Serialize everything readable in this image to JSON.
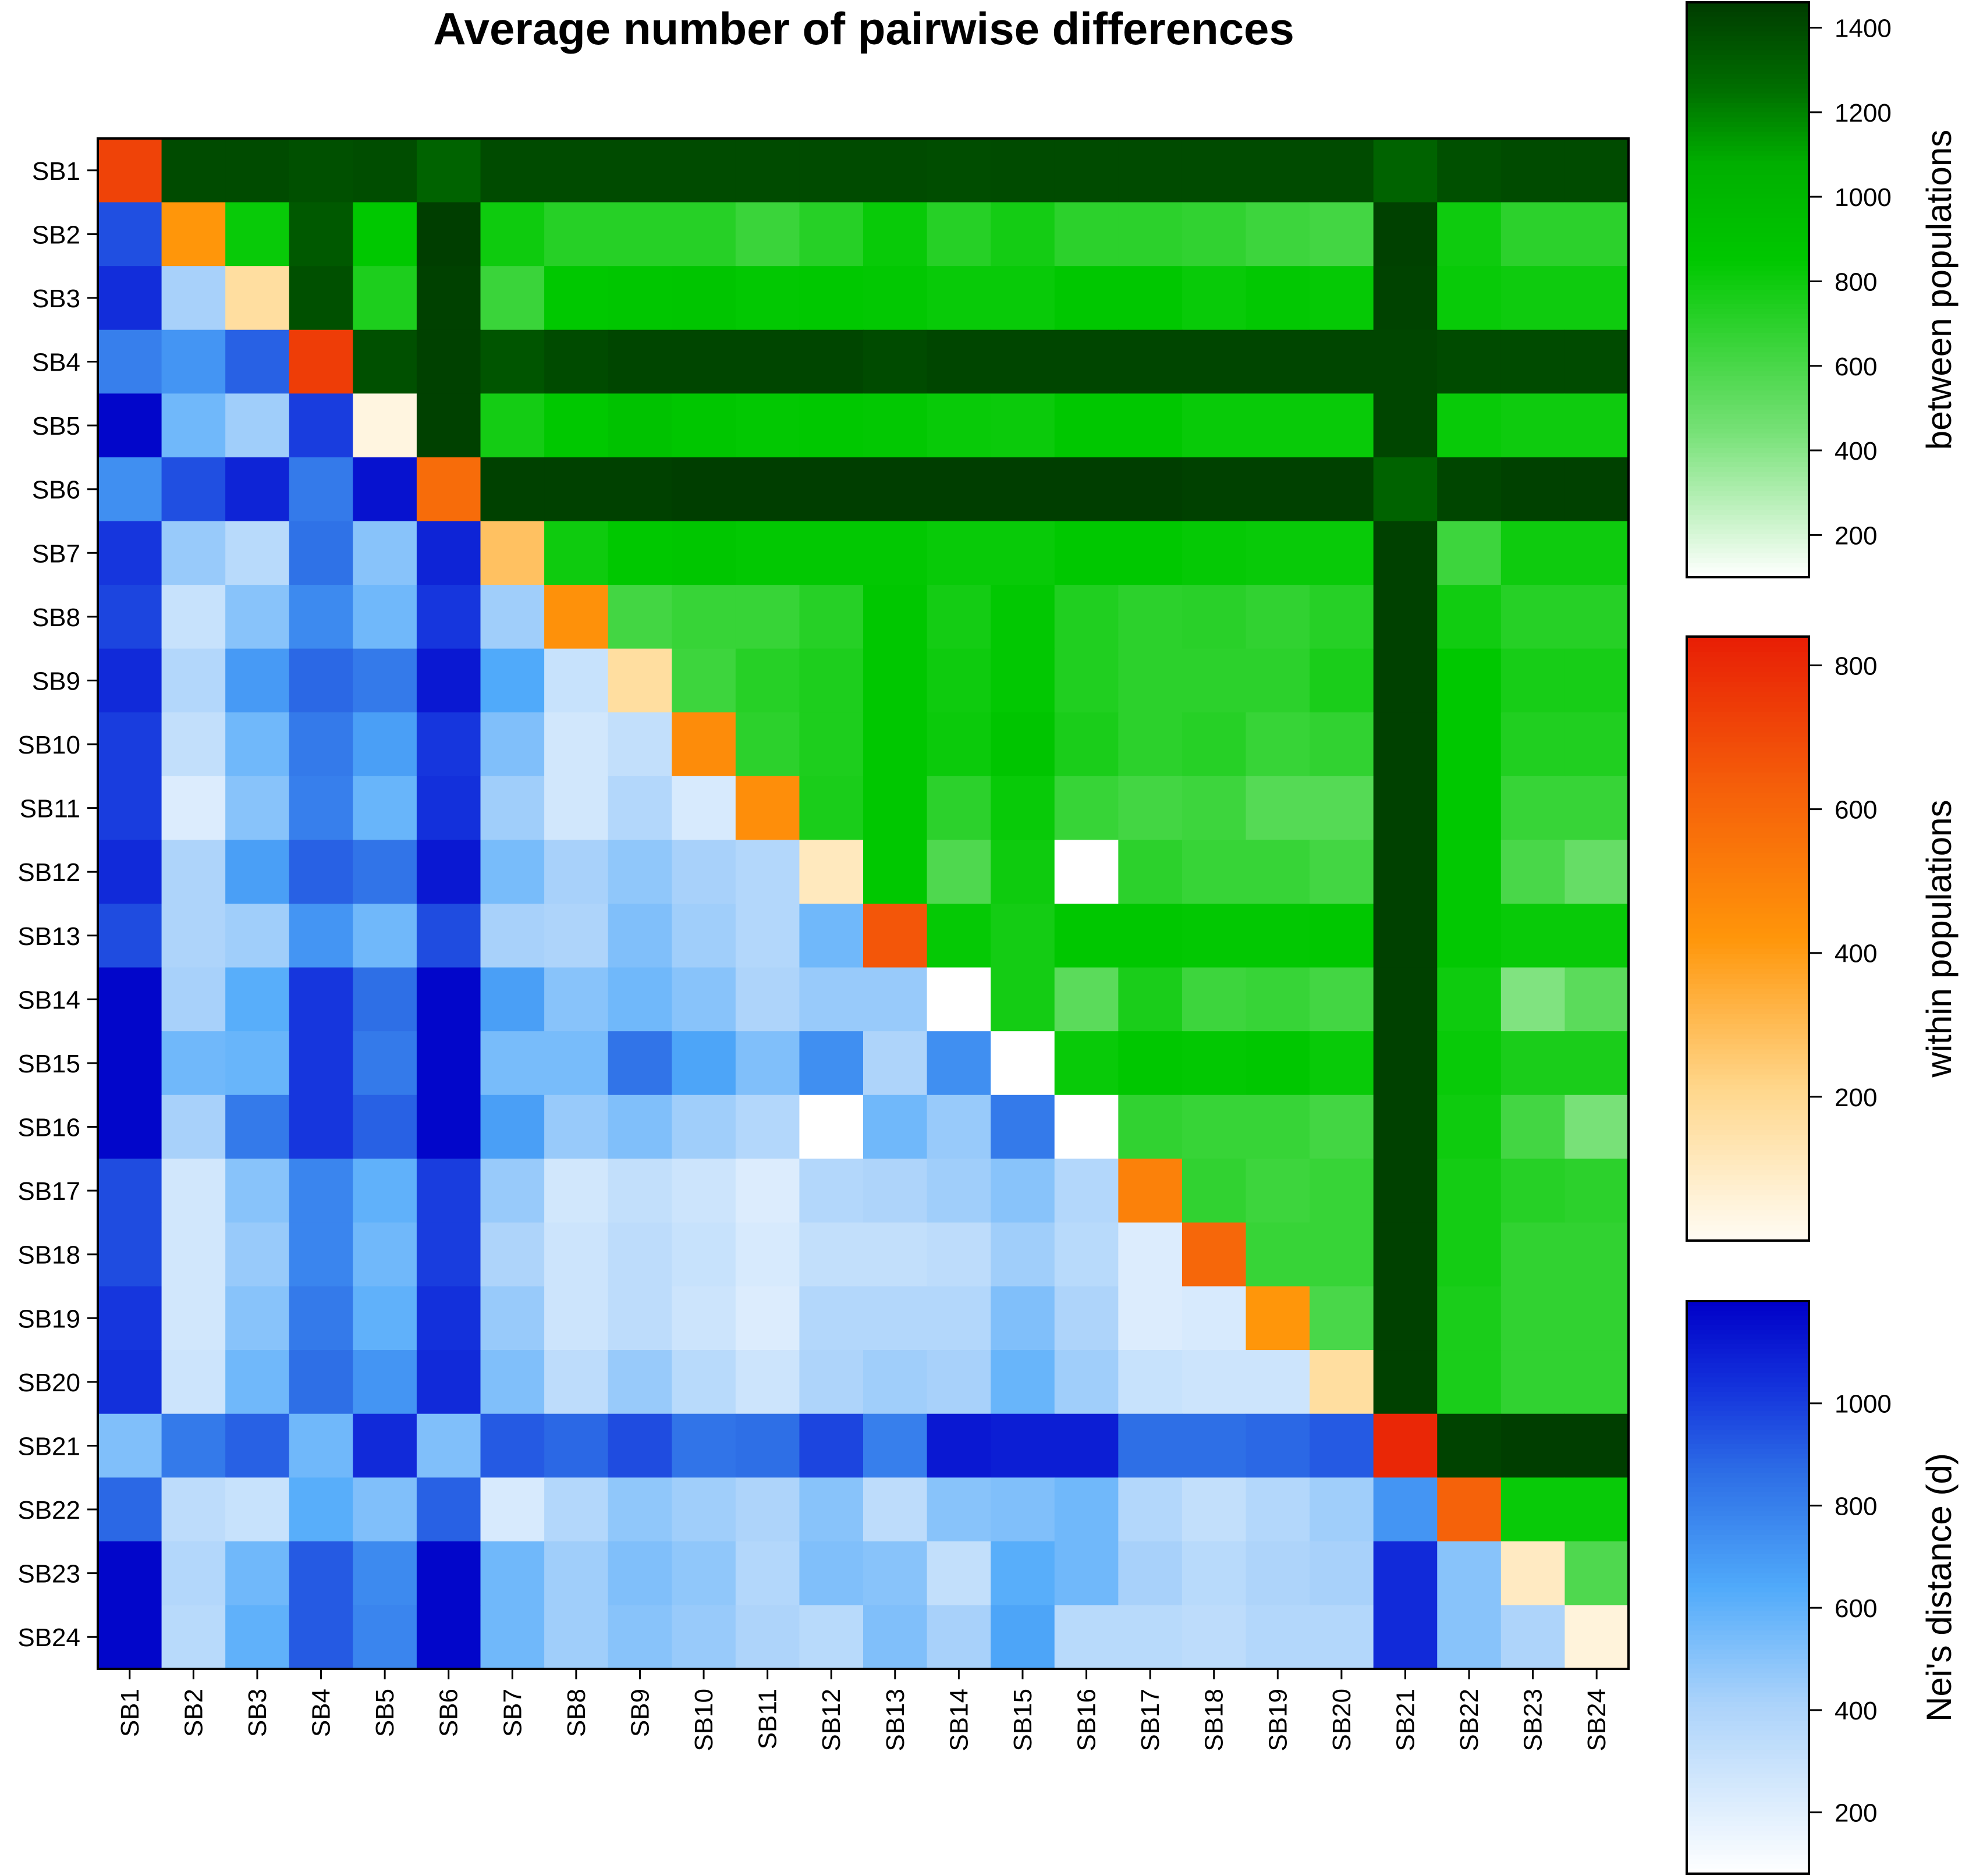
{
  "chart_data": {
    "type": "heatmap",
    "title": "Average number of pairwise differences",
    "labels": [
      "SB1",
      "SB2",
      "SB3",
      "SB4",
      "SB5",
      "SB6",
      "SB7",
      "SB8",
      "SB9",
      "SB10",
      "SB11",
      "SB12",
      "SB13",
      "SB14",
      "SB15",
      "SB16",
      "SB17",
      "SB18",
      "SB19",
      "SB20",
      "SB21",
      "SB22",
      "SB23",
      "SB24"
    ],
    "description_of_layout": "",
    "within_populations": [
      720,
      420,
      170,
      740,
      40,
      580,
      280,
      440,
      170,
      460,
      450,
      110,
      660,
      0,
      0,
      0,
      500,
      600,
      420,
      170,
      810,
      620,
      100,
      50
    ],
    "between_populations": [
      [
        null,
        1400,
        1400,
        1380,
        1390,
        1300,
        1400,
        1400,
        1400,
        1400,
        1400,
        1400,
        1400,
        1390,
        1400,
        1400,
        1400,
        1400,
        1400,
        1400,
        1300,
        1380,
        1400,
        1400
      ],
      [
        null,
        null,
        820,
        1340,
        850,
        1450,
        800,
        720,
        720,
        720,
        650,
        720,
        820,
        720,
        780,
        700,
        700,
        680,
        640,
        620,
        1440,
        800,
        700,
        700
      ],
      [
        null,
        null,
        null,
        1380,
        750,
        1440,
        650,
        850,
        870,
        880,
        840,
        850,
        840,
        820,
        820,
        860,
        860,
        820,
        840,
        830,
        1430,
        820,
        800,
        800
      ],
      [
        null,
        null,
        null,
        null,
        1380,
        1440,
        1360,
        1400,
        1420,
        1420,
        1420,
        1420,
        1400,
        1420,
        1420,
        1420,
        1420,
        1420,
        1420,
        1420,
        1420,
        1400,
        1400,
        1400
      ],
      [
        null,
        null,
        null,
        null,
        null,
        1440,
        780,
        850,
        900,
        870,
        840,
        850,
        840,
        820,
        810,
        860,
        860,
        820,
        820,
        820,
        1420,
        820,
        800,
        800
      ],
      [
        null,
        null,
        null,
        null,
        null,
        null,
        1440,
        1440,
        1440,
        1450,
        1450,
        1450,
        1450,
        1450,
        1450,
        1450,
        1450,
        1440,
        1440,
        1440,
        1300,
        1420,
        1440,
        1440
      ],
      [
        null,
        null,
        null,
        null,
        null,
        null,
        null,
        800,
        850,
        870,
        840,
        840,
        840,
        820,
        820,
        850,
        850,
        830,
        820,
        820,
        1440,
        640,
        800,
        800
      ],
      [
        null,
        null,
        null,
        null,
        null,
        null,
        null,
        null,
        620,
        660,
        660,
        720,
        860,
        780,
        840,
        740,
        700,
        710,
        680,
        720,
        1440,
        790,
        720,
        720
      ],
      [
        null,
        null,
        null,
        null,
        null,
        null,
        null,
        null,
        null,
        640,
        720,
        750,
        860,
        800,
        840,
        740,
        700,
        700,
        700,
        760,
        1440,
        850,
        770,
        770
      ],
      [
        null,
        null,
        null,
        null,
        null,
        null,
        null,
        null,
        null,
        null,
        700,
        750,
        860,
        810,
        880,
        760,
        700,
        720,
        660,
        680,
        1440,
        850,
        740,
        740
      ],
      [
        null,
        null,
        null,
        null,
        null,
        null,
        null,
        null,
        null,
        null,
        null,
        760,
        860,
        700,
        820,
        660,
        620,
        640,
        560,
        560,
        1440,
        850,
        660,
        660
      ],
      [
        null,
        null,
        null,
        null,
        null,
        null,
        null,
        null,
        null,
        null,
        null,
        null,
        850,
        580,
        800,
        0,
        700,
        660,
        660,
        620,
        1440,
        840,
        600,
        500
      ],
      [
        null,
        null,
        null,
        null,
        null,
        null,
        null,
        null,
        null,
        null,
        null,
        null,
        null,
        830,
        780,
        860,
        860,
        840,
        840,
        860,
        1440,
        840,
        820,
        820
      ],
      [
        null,
        null,
        null,
        null,
        null,
        null,
        null,
        null,
        null,
        null,
        null,
        null,
        null,
        null,
        780,
        540,
        760,
        640,
        660,
        620,
        1440,
        800,
        420,
        540
      ],
      [
        null,
        null,
        null,
        null,
        null,
        null,
        null,
        null,
        null,
        null,
        null,
        null,
        null,
        null,
        null,
        820,
        860,
        840,
        860,
        820,
        1440,
        820,
        760,
        760
      ],
      [
        null,
        null,
        null,
        null,
        null,
        null,
        null,
        null,
        null,
        null,
        null,
        null,
        null,
        null,
        null,
        null,
        680,
        660,
        660,
        620,
        1440,
        800,
        620,
        440
      ],
      [
        null,
        null,
        null,
        null,
        null,
        null,
        null,
        null,
        null,
        null,
        null,
        null,
        null,
        null,
        null,
        null,
        null,
        680,
        640,
        660,
        1440,
        780,
        720,
        700
      ],
      [
        null,
        null,
        null,
        null,
        null,
        null,
        null,
        null,
        null,
        null,
        null,
        null,
        null,
        null,
        null,
        null,
        null,
        null,
        660,
        660,
        1440,
        780,
        680,
        680
      ],
      [
        null,
        null,
        null,
        null,
        null,
        null,
        null,
        null,
        null,
        null,
        null,
        null,
        null,
        null,
        null,
        null,
        null,
        null,
        null,
        600,
        1440,
        760,
        680,
        680
      ],
      [
        null,
        null,
        null,
        null,
        null,
        null,
        null,
        null,
        null,
        null,
        null,
        null,
        null,
        null,
        null,
        null,
        null,
        null,
        null,
        null,
        1440,
        760,
        680,
        680
      ],
      [
        null,
        null,
        null,
        null,
        null,
        null,
        null,
        null,
        null,
        null,
        null,
        null,
        null,
        null,
        null,
        null,
        null,
        null,
        null,
        null,
        null,
        1430,
        1450,
        1450
      ],
      [
        null,
        null,
        null,
        null,
        null,
        null,
        null,
        null,
        null,
        null,
        null,
        null,
        null,
        null,
        null,
        null,
        null,
        null,
        null,
        null,
        null,
        null,
        820,
        820
      ],
      [
        null,
        null,
        null,
        null,
        null,
        null,
        null,
        null,
        null,
        null,
        null,
        null,
        null,
        null,
        null,
        null,
        null,
        null,
        null,
        null,
        null,
        null,
        null,
        580
      ],
      [
        null,
        null,
        null,
        null,
        null,
        null,
        null,
        null,
        null,
        null,
        null,
        null,
        null,
        null,
        null,
        null,
        null,
        null,
        null,
        null,
        null,
        null,
        null,
        null
      ]
    ],
    "nei_distance": [
      [
        null,
        null,
        null,
        null,
        null,
        null,
        null,
        null,
        null,
        null,
        null,
        null,
        null,
        null,
        null,
        null,
        null,
        null,
        null,
        null,
        null,
        null,
        null,
        null
      ],
      [
        950,
        null,
        null,
        null,
        null,
        null,
        null,
        null,
        null,
        null,
        null,
        null,
        null,
        null,
        null,
        null,
        null,
        null,
        null,
        null,
        null,
        null,
        null,
        null
      ],
      [
        1050,
        420,
        null,
        null,
        null,
        null,
        null,
        null,
        null,
        null,
        null,
        null,
        null,
        null,
        null,
        null,
        null,
        null,
        null,
        null,
        null,
        null,
        null,
        null
      ],
      [
        800,
        720,
        900,
        null,
        null,
        null,
        null,
        null,
        null,
        null,
        null,
        null,
        null,
        null,
        null,
        null,
        null,
        null,
        null,
        null,
        null,
        null,
        null,
        null
      ],
      [
        1180,
        560,
        440,
        1000,
        null,
        null,
        null,
        null,
        null,
        null,
        null,
        null,
        null,
        null,
        null,
        null,
        null,
        null,
        null,
        null,
        null,
        null,
        null,
        null
      ],
      [
        740,
        950,
        1080,
        820,
        1140,
        null,
        null,
        null,
        null,
        null,
        null,
        null,
        null,
        null,
        null,
        null,
        null,
        null,
        null,
        null,
        null,
        null,
        null,
        null
      ],
      [
        1020,
        460,
        360,
        850,
        500,
        1080,
        null,
        null,
        null,
        null,
        null,
        null,
        null,
        null,
        null,
        null,
        null,
        null,
        null,
        null,
        null,
        null,
        null,
        null
      ],
      [
        980,
        300,
        500,
        760,
        560,
        1020,
        440,
        null,
        null,
        null,
        null,
        null,
        null,
        null,
        null,
        null,
        null,
        null,
        null,
        null,
        null,
        null,
        null,
        null
      ],
      [
        1060,
        380,
        700,
        880,
        820,
        1120,
        640,
        300,
        null,
        null,
        null,
        null,
        null,
        null,
        null,
        null,
        null,
        null,
        null,
        null,
        null,
        null,
        null,
        null
      ],
      [
        1000,
        320,
        560,
        820,
        680,
        1020,
        520,
        260,
        320,
        null,
        null,
        null,
        null,
        null,
        null,
        null,
        null,
        null,
        null,
        null,
        null,
        null,
        null,
        null
      ],
      [
        1000,
        220,
        500,
        800,
        580,
        1040,
        440,
        260,
        380,
        240,
        null,
        null,
        null,
        null,
        null,
        null,
        null,
        null,
        null,
        null,
        null,
        null,
        null,
        null
      ],
      [
        1060,
        400,
        680,
        900,
        840,
        1120,
        540,
        420,
        480,
        420,
        380,
        null,
        null,
        null,
        null,
        null,
        null,
        null,
        null,
        null,
        null,
        null,
        null,
        null
      ],
      [
        960,
        400,
        440,
        720,
        560,
        960,
        420,
        400,
        520,
        440,
        380,
        560,
        null,
        null,
        null,
        null,
        null,
        null,
        null,
        null,
        null,
        null,
        null,
        null
      ],
      [
        1180,
        420,
        620,
        1020,
        860,
        1180,
        680,
        500,
        560,
        500,
        400,
        460,
        460,
        null,
        null,
        null,
        null,
        null,
        null,
        null,
        null,
        null,
        null,
        null
      ],
      [
        1180,
        560,
        580,
        1020,
        820,
        1180,
        540,
        540,
        840,
        660,
        520,
        740,
        400,
        740,
        null,
        null,
        null,
        null,
        null,
        null,
        null,
        null,
        null,
        null
      ],
      [
        1180,
        420,
        820,
        1020,
        900,
        1180,
        680,
        460,
        520,
        440,
        380,
        0,
        560,
        460,
        820,
        null,
        null,
        null,
        null,
        null,
        null,
        null,
        null,
        null
      ],
      [
        960,
        260,
        500,
        780,
        600,
        1000,
        460,
        260,
        320,
        280,
        220,
        380,
        400,
        440,
        500,
        380,
        null,
        null,
        null,
        null,
        null,
        null,
        null,
        null
      ],
      [
        960,
        260,
        460,
        780,
        560,
        1000,
        400,
        280,
        340,
        300,
        240,
        320,
        320,
        340,
        440,
        360,
        220,
        null,
        null,
        null,
        null,
        null,
        null,
        null
      ],
      [
        1020,
        260,
        500,
        820,
        600,
        1040,
        460,
        280,
        340,
        280,
        220,
        380,
        380,
        380,
        520,
        400,
        220,
        240,
        null,
        null,
        null,
        null,
        null,
        null
      ],
      [
        1040,
        280,
        560,
        860,
        720,
        1060,
        520,
        340,
        460,
        360,
        280,
        400,
        440,
        420,
        580,
        440,
        300,
        280,
        280,
        null,
        null,
        null,
        null,
        null,
        null
      ],
      [
        520,
        820,
        900,
        560,
        1060,
        520,
        920,
        880,
        960,
        840,
        860,
        980,
        800,
        1120,
        1100,
        1100,
        860,
        860,
        880,
        920,
        null,
        null,
        null,
        null
      ],
      [
        880,
        340,
        300,
        620,
        520,
        900,
        240,
        380,
        480,
        440,
        400,
        500,
        340,
        500,
        520,
        560,
        380,
        320,
        380,
        440,
        720,
        null,
        null,
        null
      ],
      [
        1180,
        380,
        560,
        920,
        760,
        1180,
        560,
        440,
        520,
        480,
        380,
        520,
        500,
        320,
        620,
        560,
        420,
        360,
        400,
        420,
        1060,
        500,
        null,
        null
      ],
      [
        1180,
        360,
        600,
        920,
        780,
        1180,
        560,
        440,
        500,
        460,
        400,
        360,
        520,
        420,
        660,
        360,
        360,
        340,
        380,
        380,
        1060,
        500,
        400,
        null
      ]
    ],
    "colorbars": [
      {
        "label": "between populations",
        "ticks": [
          200,
          400,
          600,
          800,
          1000,
          1200,
          1400
        ],
        "range": [
          100,
          1460
        ]
      },
      {
        "label": "within populations",
        "ticks": [
          200,
          400,
          600,
          800
        ],
        "range": [
          0,
          840
        ]
      },
      {
        "label": "Nei's distance (d)",
        "ticks": [
          200,
          400,
          600,
          800,
          1000
        ],
        "range": [
          80,
          1200
        ]
      }
    ]
  }
}
